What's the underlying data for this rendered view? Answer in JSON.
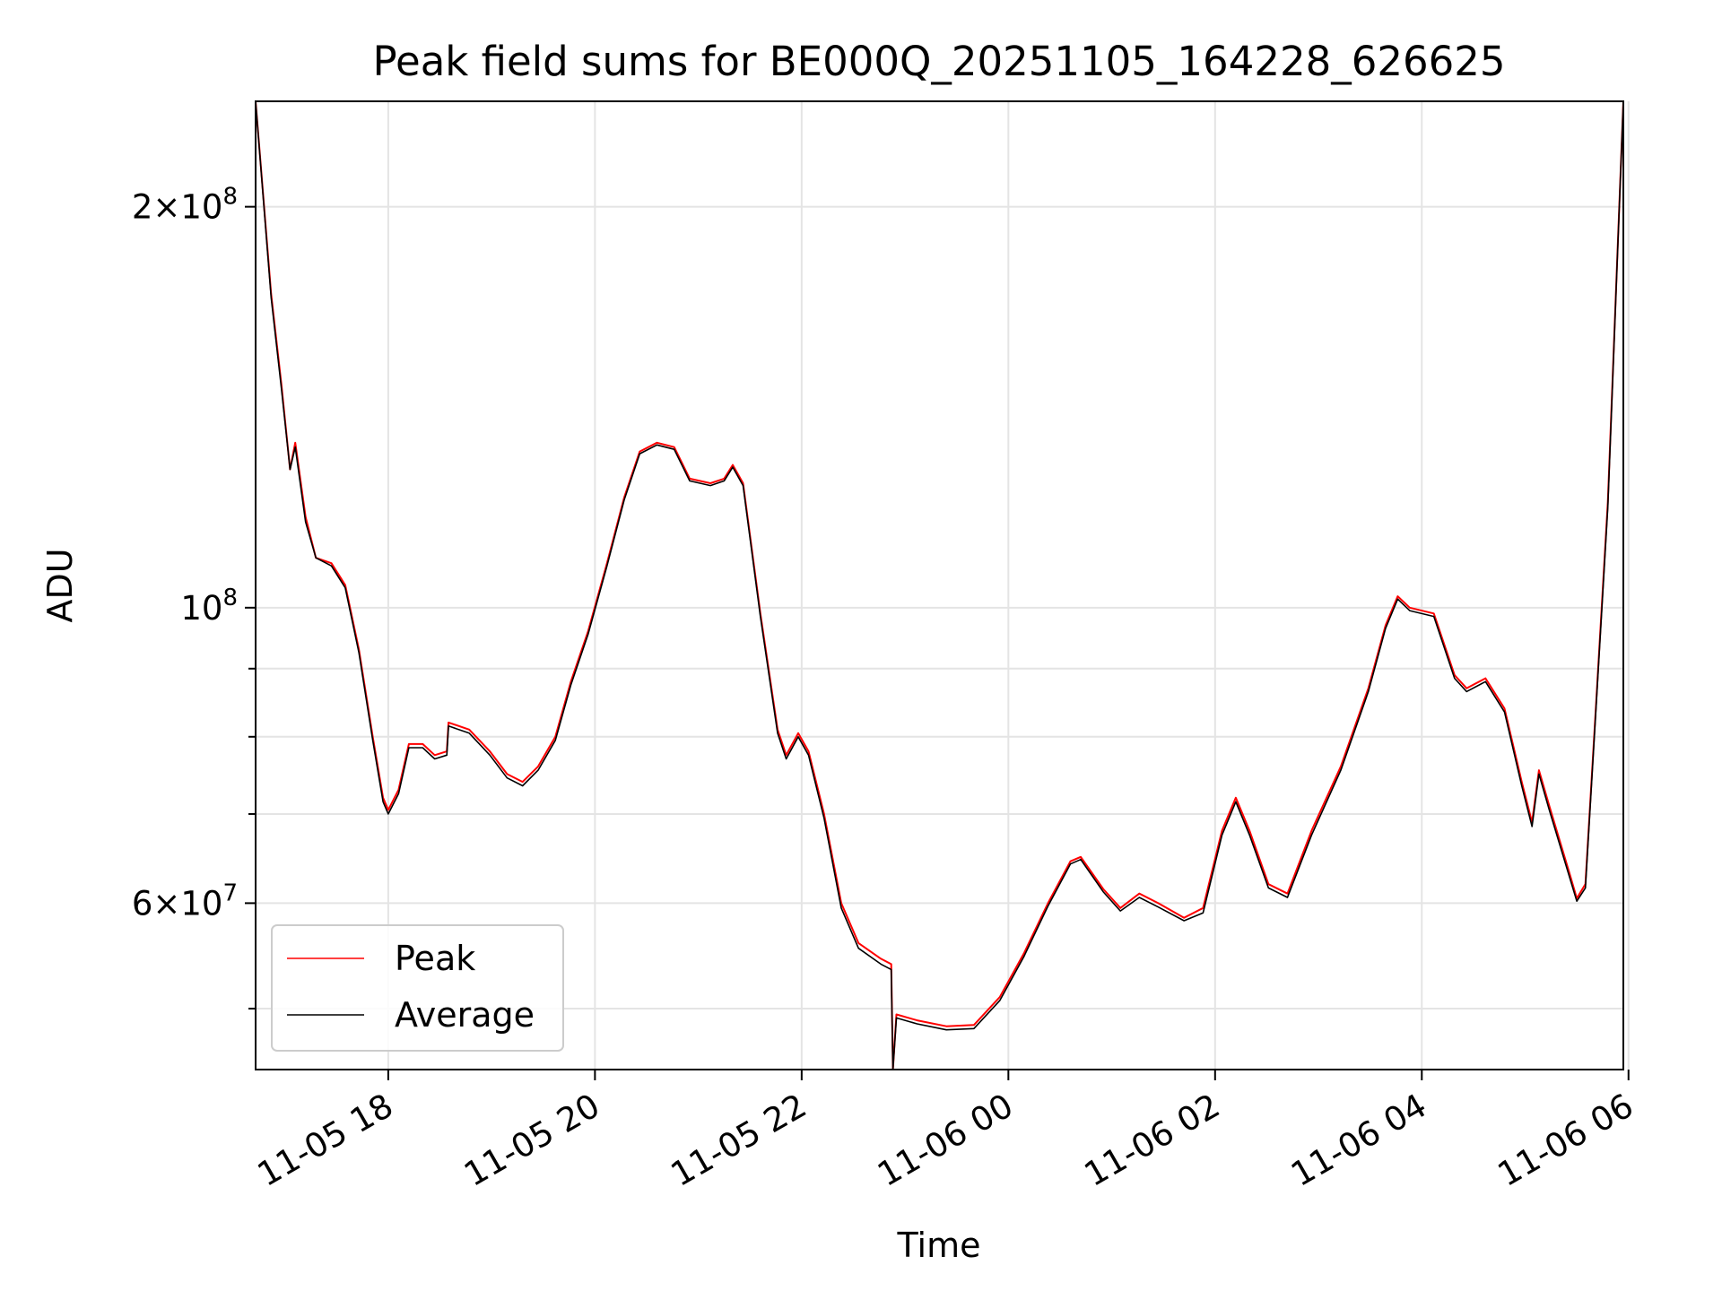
{
  "chart_data": {
    "type": "line",
    "title": "Peak field sums for BE000Q_20251105_164228_626625",
    "xlabel": "Time",
    "ylabel": "ADU",
    "y_scale": "log",
    "x_range": [
      "2025-11-05 16:43",
      "2025-11-06 05:57"
    ],
    "ylim": [
      45000000,
      240000000
    ],
    "x_ticks": [
      {
        "at": "2025-11-05 18:00",
        "label": "11-05 18"
      },
      {
        "at": "2025-11-05 20:00",
        "label": "11-05 20"
      },
      {
        "at": "2025-11-05 22:00",
        "label": "11-05 22"
      },
      {
        "at": "2025-11-06 00:00",
        "label": "11-06 00"
      },
      {
        "at": "2025-11-06 02:00",
        "label": "11-06 02"
      },
      {
        "at": "2025-11-06 04:00",
        "label": "11-06 04"
      },
      {
        "at": "2025-11-06 06:00",
        "label": "11-06 06"
      }
    ],
    "y_major_ticks": [
      {
        "value": 60000000,
        "mantissa": "6",
        "exponent": "7"
      },
      {
        "value": 100000000,
        "mantissa": "",
        "exponent": "8"
      },
      {
        "value": 200000000,
        "mantissa": "2",
        "exponent": "8"
      }
    ],
    "y_minor_ticks": [
      50000000,
      70000000,
      80000000,
      90000000
    ],
    "grid": true,
    "legend_position": "lower-left",
    "series": [
      {
        "name": "Peak",
        "color": "#ff0000",
        "points": [
          [
            "2025-11-05 16:43",
            240000000
          ],
          [
            "2025-11-05 16:52",
            172000000
          ],
          [
            "2025-11-05 16:58",
            147000000
          ],
          [
            "2025-11-05 17:03",
            127000000
          ],
          [
            "2025-11-05 17:06",
            133000000
          ],
          [
            "2025-11-05 17:12",
            117000000
          ],
          [
            "2025-11-05 17:18",
            109000000
          ],
          [
            "2025-11-05 17:27",
            108000000
          ],
          [
            "2025-11-05 17:35",
            104000000
          ],
          [
            "2025-11-05 17:43",
            93000000
          ],
          [
            "2025-11-05 17:51",
            80000000
          ],
          [
            "2025-11-05 17:57",
            72000000
          ],
          [
            "2025-11-05 18:00",
            70500000
          ],
          [
            "2025-11-05 18:06",
            73000000
          ],
          [
            "2025-11-05 18:12",
            79000000
          ],
          [
            "2025-11-05 18:20",
            79000000
          ],
          [
            "2025-11-05 18:27",
            77500000
          ],
          [
            "2025-11-05 18:34",
            78000000
          ],
          [
            "2025-11-05 18:35",
            82000000
          ],
          [
            "2025-11-05 18:47",
            81000000
          ],
          [
            "2025-11-05 18:59",
            78000000
          ],
          [
            "2025-11-05 19:09",
            75000000
          ],
          [
            "2025-11-05 19:18",
            74000000
          ],
          [
            "2025-11-05 19:27",
            76000000
          ],
          [
            "2025-11-05 19:37",
            80000000
          ],
          [
            "2025-11-05 19:46",
            88000000
          ],
          [
            "2025-11-05 19:56",
            96000000
          ],
          [
            "2025-11-05 20:07",
            108000000
          ],
          [
            "2025-11-05 20:17",
            121000000
          ],
          [
            "2025-11-05 20:26",
            131000000
          ],
          [
            "2025-11-05 20:36",
            133000000
          ],
          [
            "2025-11-05 20:46",
            132000000
          ],
          [
            "2025-11-05 20:55",
            125000000
          ],
          [
            "2025-11-05 21:07",
            124000000
          ],
          [
            "2025-11-05 21:15",
            125000000
          ],
          [
            "2025-11-05 21:20",
            128000000
          ],
          [
            "2025-11-05 21:26",
            124000000
          ],
          [
            "2025-11-05 21:36",
            99000000
          ],
          [
            "2025-11-05 21:46",
            81000000
          ],
          [
            "2025-11-05 21:51",
            77500000
          ],
          [
            "2025-11-05 21:58",
            80500000
          ],
          [
            "2025-11-05 22:04",
            78000000
          ],
          [
            "2025-11-05 22:13",
            70000000
          ],
          [
            "2025-11-05 22:23",
            60000000
          ],
          [
            "2025-11-05 22:33",
            56000000
          ],
          [
            "2025-11-05 22:46",
            54500000
          ],
          [
            "2025-11-05 22:52",
            54000000
          ],
          [
            "2025-11-05 22:53",
            45000000
          ],
          [
            "2025-11-05 22:55",
            49500000
          ],
          [
            "2025-11-05 23:07",
            49000000
          ],
          [
            "2025-11-05 23:24",
            48500000
          ],
          [
            "2025-11-05 23:40",
            48600000
          ],
          [
            "2025-11-05 23:55",
            51000000
          ],
          [
            "2025-11-06 00:09",
            55000000
          ],
          [
            "2025-11-06 00:23",
            60000000
          ],
          [
            "2025-11-06 00:36",
            64500000
          ],
          [
            "2025-11-06 00:42",
            65000000
          ],
          [
            "2025-11-06 00:55",
            61500000
          ],
          [
            "2025-11-06 01:05",
            59500000
          ],
          [
            "2025-11-06 01:16",
            61000000
          ],
          [
            "2025-11-06 01:27",
            60000000
          ],
          [
            "2025-11-06 01:42",
            58500000
          ],
          [
            "2025-11-06 01:53",
            59500000
          ],
          [
            "2025-11-06 02:04",
            68000000
          ],
          [
            "2025-11-06 02:12",
            72000000
          ],
          [
            "2025-11-06 02:20",
            68000000
          ],
          [
            "2025-11-06 02:31",
            62000000
          ],
          [
            "2025-11-06 02:42",
            61000000
          ],
          [
            "2025-11-06 02:56",
            68000000
          ],
          [
            "2025-11-06 03:13",
            76000000
          ],
          [
            "2025-11-06 03:29",
            87000000
          ],
          [
            "2025-11-06 03:39",
            97000000
          ],
          [
            "2025-11-06 03:46",
            102000000
          ],
          [
            "2025-11-06 03:53",
            100000000
          ],
          [
            "2025-11-06 04:07",
            99000000
          ],
          [
            "2025-11-06 04:19",
            89000000
          ],
          [
            "2025-11-06 04:26",
            87000000
          ],
          [
            "2025-11-06 04:37",
            88500000
          ],
          [
            "2025-11-06 04:48",
            84000000
          ],
          [
            "2025-11-06 04:58",
            74000000
          ],
          [
            "2025-11-06 05:04",
            69000000
          ],
          [
            "2025-11-06 05:08",
            75500000
          ],
          [
            "2025-11-06 05:14",
            71000000
          ],
          [
            "2025-11-06 05:26",
            63000000
          ],
          [
            "2025-11-06 05:30",
            60500000
          ],
          [
            "2025-11-06 05:35",
            62000000
          ],
          [
            "2025-11-06 05:41",
            84000000
          ],
          [
            "2025-11-06 05:48",
            120000000
          ],
          [
            "2025-11-06 05:57",
            240000000
          ]
        ]
      },
      {
        "name": "Average",
        "color": "#000000",
        "points": [
          [
            "2025-11-05 16:43",
            240000000
          ],
          [
            "2025-11-05 16:52",
            171000000
          ],
          [
            "2025-11-05 16:58",
            146000000
          ],
          [
            "2025-11-05 17:03",
            127000000
          ],
          [
            "2025-11-05 17:06",
            132000000
          ],
          [
            "2025-11-05 17:12",
            116000000
          ],
          [
            "2025-11-05 17:18",
            109000000
          ],
          [
            "2025-11-05 17:27",
            107500000
          ],
          [
            "2025-11-05 17:35",
            103500000
          ],
          [
            "2025-11-05 17:43",
            92500000
          ],
          [
            "2025-11-05 17:51",
            79500000
          ],
          [
            "2025-11-05 17:57",
            71500000
          ],
          [
            "2025-11-05 18:00",
            70000000
          ],
          [
            "2025-11-05 18:06",
            72500000
          ],
          [
            "2025-11-05 18:12",
            78500000
          ],
          [
            "2025-11-05 18:20",
            78500000
          ],
          [
            "2025-11-05 18:27",
            77000000
          ],
          [
            "2025-11-05 18:34",
            77500000
          ],
          [
            "2025-11-05 18:35",
            81500000
          ],
          [
            "2025-11-05 18:47",
            80500000
          ],
          [
            "2025-11-05 18:59",
            77500000
          ],
          [
            "2025-11-05 19:09",
            74500000
          ],
          [
            "2025-11-05 19:18",
            73500000
          ],
          [
            "2025-11-05 19:27",
            75500000
          ],
          [
            "2025-11-05 19:37",
            79500000
          ],
          [
            "2025-11-05 19:46",
            87500000
          ],
          [
            "2025-11-05 19:56",
            95500000
          ],
          [
            "2025-11-05 20:07",
            107500000
          ],
          [
            "2025-11-05 20:17",
            120500000
          ],
          [
            "2025-11-05 20:26",
            130500000
          ],
          [
            "2025-11-05 20:36",
            132500000
          ],
          [
            "2025-11-05 20:46",
            131500000
          ],
          [
            "2025-11-05 20:55",
            124500000
          ],
          [
            "2025-11-05 21:07",
            123500000
          ],
          [
            "2025-11-05 21:15",
            124500000
          ],
          [
            "2025-11-05 21:20",
            127500000
          ],
          [
            "2025-11-05 21:26",
            123500000
          ],
          [
            "2025-11-05 21:36",
            98500000
          ],
          [
            "2025-11-05 21:46",
            80500000
          ],
          [
            "2025-11-05 21:51",
            77000000
          ],
          [
            "2025-11-05 21:58",
            80000000
          ],
          [
            "2025-11-05 22:04",
            77500000
          ],
          [
            "2025-11-05 22:13",
            69500000
          ],
          [
            "2025-11-05 22:23",
            59500000
          ],
          [
            "2025-11-05 22:33",
            55500000
          ],
          [
            "2025-11-05 22:46",
            54000000
          ],
          [
            "2025-11-05 22:52",
            53500000
          ],
          [
            "2025-11-05 22:53",
            45000000
          ],
          [
            "2025-11-05 22:55",
            49200000
          ],
          [
            "2025-11-05 23:07",
            48700000
          ],
          [
            "2025-11-05 23:24",
            48200000
          ],
          [
            "2025-11-05 23:40",
            48300000
          ],
          [
            "2025-11-05 23:55",
            50700000
          ],
          [
            "2025-11-06 00:09",
            54700000
          ],
          [
            "2025-11-06 00:23",
            59700000
          ],
          [
            "2025-11-06 00:36",
            64200000
          ],
          [
            "2025-11-06 00:42",
            64700000
          ],
          [
            "2025-11-06 00:55",
            61200000
          ],
          [
            "2025-11-06 01:05",
            59200000
          ],
          [
            "2025-11-06 01:16",
            60600000
          ],
          [
            "2025-11-06 01:27",
            59600000
          ],
          [
            "2025-11-06 01:42",
            58200000
          ],
          [
            "2025-11-06 01:53",
            59000000
          ],
          [
            "2025-11-06 02:04",
            67500000
          ],
          [
            "2025-11-06 02:12",
            71500000
          ],
          [
            "2025-11-06 02:20",
            67500000
          ],
          [
            "2025-11-06 02:31",
            61600000
          ],
          [
            "2025-11-06 02:42",
            60600000
          ],
          [
            "2025-11-06 02:56",
            67500000
          ],
          [
            "2025-11-06 03:13",
            75500000
          ],
          [
            "2025-11-06 03:29",
            86500000
          ],
          [
            "2025-11-06 03:39",
            96500000
          ],
          [
            "2025-11-06 03:46",
            101500000
          ],
          [
            "2025-11-06 03:53",
            99500000
          ],
          [
            "2025-11-06 04:07",
            98500000
          ],
          [
            "2025-11-06 04:19",
            88500000
          ],
          [
            "2025-11-06 04:26",
            86500000
          ],
          [
            "2025-11-06 04:37",
            88000000
          ],
          [
            "2025-11-06 04:48",
            83500000
          ],
          [
            "2025-11-06 04:58",
            73500000
          ],
          [
            "2025-11-06 05:04",
            68500000
          ],
          [
            "2025-11-06 05:08",
            75000000
          ],
          [
            "2025-11-06 05:14",
            70500000
          ],
          [
            "2025-11-06 05:26",
            62600000
          ],
          [
            "2025-11-06 05:30",
            60200000
          ],
          [
            "2025-11-06 05:35",
            61600000
          ],
          [
            "2025-11-06 05:41",
            83500000
          ],
          [
            "2025-11-06 05:48",
            119000000
          ],
          [
            "2025-11-06 05:57",
            240000000
          ]
        ]
      }
    ]
  }
}
